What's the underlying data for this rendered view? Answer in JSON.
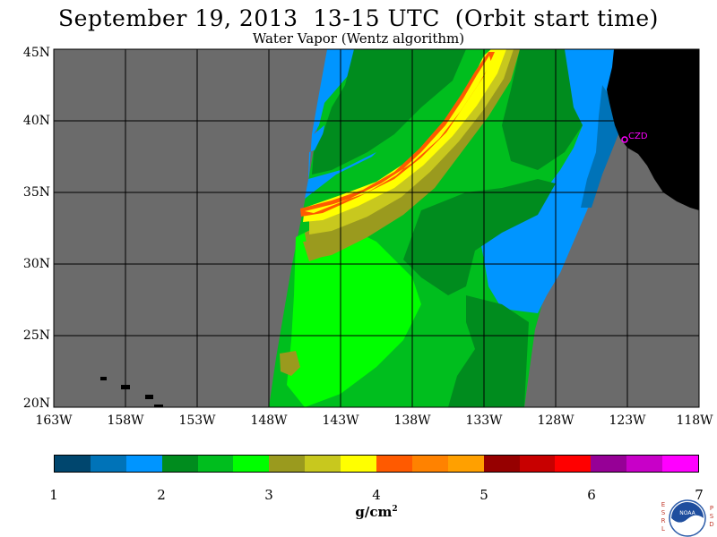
{
  "title": "September 19, 2013  13-15 UTC  (Orbit start time)",
  "subtitle": "Water Vapor (Wentz algorithm)",
  "map": {
    "lat_labels": [
      "45N",
      "40N",
      "35N",
      "30N",
      "25N",
      "20N"
    ],
    "lon_labels": [
      "163W",
      "158W",
      "153W",
      "148W",
      "143W",
      "138W",
      "133W",
      "128W",
      "123W",
      "118W"
    ],
    "lat_range": [
      20,
      45
    ],
    "lon_range": [
      -163,
      -118
    ],
    "background_color": "#6b6b6b",
    "land_color": "#000000",
    "station_label": "CZD",
    "station_color": "#ff00ff"
  },
  "colorbar": {
    "colors": [
      "#00466e",
      "#0073b8",
      "#0095ff",
      "#008c1e",
      "#00be1e",
      "#00ff00",
      "#9a9a1e",
      "#c8c81e",
      "#ffff00",
      "#ff5a00",
      "#ff8200",
      "#ffa000",
      "#960000",
      "#c80000",
      "#ff0000",
      "#960096",
      "#c800c8",
      "#ff00ff"
    ],
    "tick_labels": [
      "1",
      "2",
      "3",
      "4",
      "5",
      "6",
      "7"
    ],
    "units": "g/cm",
    "units_sup": "2"
  },
  "logo": {
    "left_letters": [
      "E",
      "S",
      "R",
      "L"
    ],
    "right_letters": [
      "P",
      "S",
      "D"
    ],
    "text": "NOAA"
  }
}
